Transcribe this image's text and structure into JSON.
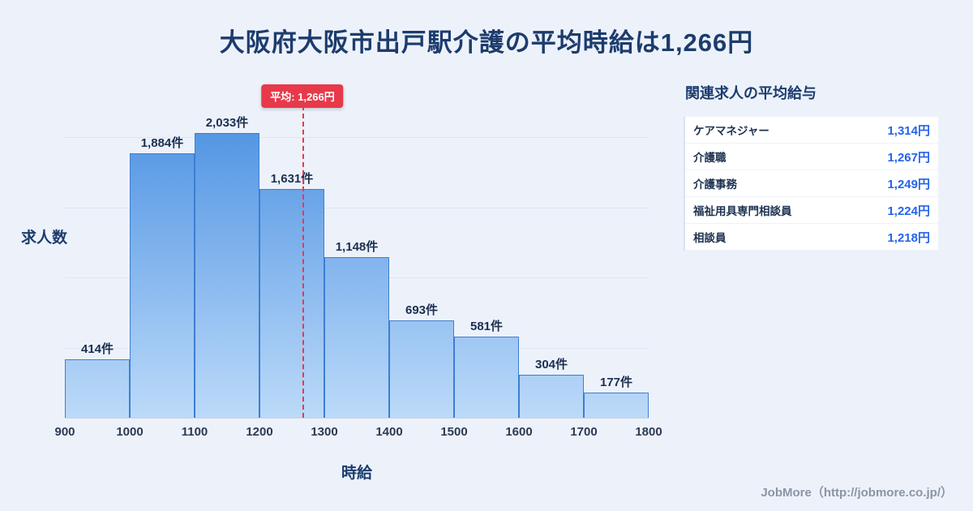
{
  "title": "大阪府大阪市出戸駅介護の平均時給は1,266円",
  "chart_data": {
    "type": "bar",
    "histogram": true,
    "bin_edges": [
      900,
      1000,
      1100,
      1200,
      1300,
      1400,
      1500,
      1600,
      1700,
      1800
    ],
    "values": [
      414,
      1884,
      2033,
      1631,
      1148,
      693,
      581,
      304,
      177
    ],
    "bar_labels": [
      "414件",
      "1,884件",
      "2,033件",
      "1,631件",
      "1,148件",
      "693件",
      "581件",
      "304件",
      "177件"
    ],
    "x_ticks": [
      "900",
      "1000",
      "1100",
      "1200",
      "1300",
      "1400",
      "1500",
      "1600",
      "1700",
      "1800"
    ],
    "xlabel": "時給",
    "ylabel": "求人数",
    "xlim": [
      900,
      1800
    ],
    "ylim": [
      0,
      2100
    ],
    "gridlines_at": [
      500,
      1000,
      1500,
      2000
    ],
    "grid": "horizontal",
    "average": 1266,
    "average_label": "平均: 1,266円",
    "legend": "none"
  },
  "side_panel": {
    "title": "関連求人の平均給与",
    "rows": [
      {
        "label": "ケアマネジャー",
        "value": "1,314円"
      },
      {
        "label": "介護職",
        "value": "1,267円"
      },
      {
        "label": "介護事務",
        "value": "1,249円"
      },
      {
        "label": "福祉用具専門相談員",
        "value": "1,224円"
      },
      {
        "label": "相談員",
        "value": "1,218円"
      }
    ]
  },
  "footer": {
    "credit": "JobMore（http://jobmore.co.jp/）"
  },
  "colors": {
    "background": "#edf2fa",
    "title_text": "#1c3c6e",
    "bar_fill_top": "#4a90e2",
    "bar_fill_bottom": "#bcdaf9",
    "bar_border": "#3d7ed2",
    "average_line": "#e8394a",
    "badge_background": "#e8394a",
    "badge_text": "#ffffff",
    "panel_value_text": "#2563eb"
  }
}
